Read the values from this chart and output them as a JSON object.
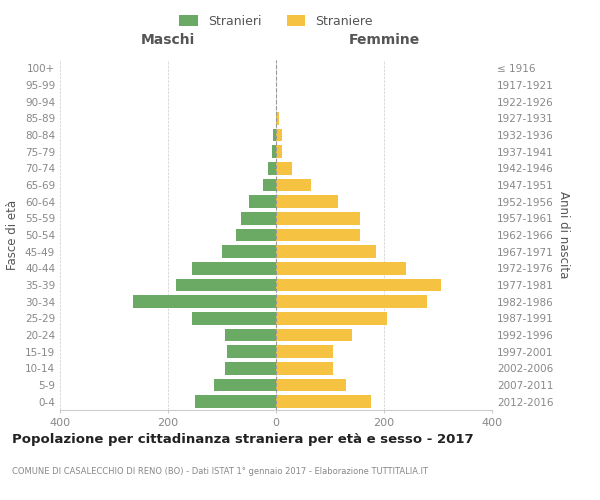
{
  "age_groups": [
    "0-4",
    "5-9",
    "10-14",
    "15-19",
    "20-24",
    "25-29",
    "30-34",
    "35-39",
    "40-44",
    "45-49",
    "50-54",
    "55-59",
    "60-64",
    "65-69",
    "70-74",
    "75-79",
    "80-84",
    "85-89",
    "90-94",
    "95-99",
    "100+"
  ],
  "birth_years": [
    "2012-2016",
    "2007-2011",
    "2002-2006",
    "1997-2001",
    "1992-1996",
    "1987-1991",
    "1982-1986",
    "1977-1981",
    "1972-1976",
    "1967-1971",
    "1962-1966",
    "1957-1961",
    "1952-1956",
    "1947-1951",
    "1942-1946",
    "1937-1941",
    "1932-1936",
    "1927-1931",
    "1922-1926",
    "1917-1921",
    "≤ 1916"
  ],
  "maschi": [
    150,
    115,
    95,
    90,
    95,
    155,
    265,
    185,
    155,
    100,
    75,
    65,
    50,
    25,
    15,
    8,
    5,
    0,
    0,
    0,
    0
  ],
  "femmine": [
    175,
    130,
    105,
    105,
    140,
    205,
    280,
    305,
    240,
    185,
    155,
    155,
    115,
    65,
    30,
    12,
    12,
    5,
    0,
    0,
    0
  ],
  "male_color": "#6aaa64",
  "female_color": "#f5c242",
  "grid_color": "#cccccc",
  "axis_label_color": "#888888",
  "text_color": "#555555",
  "background_color": "#ffffff",
  "title": "Popolazione per cittadinanza straniera per età e sesso - 2017",
  "subtitle": "COMUNE DI CASALECCHIO DI RENO (BO) - Dati ISTAT 1° gennaio 2017 - Elaborazione TUTTITALIA.IT",
  "left_header": "Maschi",
  "right_header": "Femmine",
  "ylabel": "Fasce di età",
  "right_ylabel": "Anni di nascita",
  "xlim": 400,
  "legend_male": "Stranieri",
  "legend_female": "Straniere"
}
